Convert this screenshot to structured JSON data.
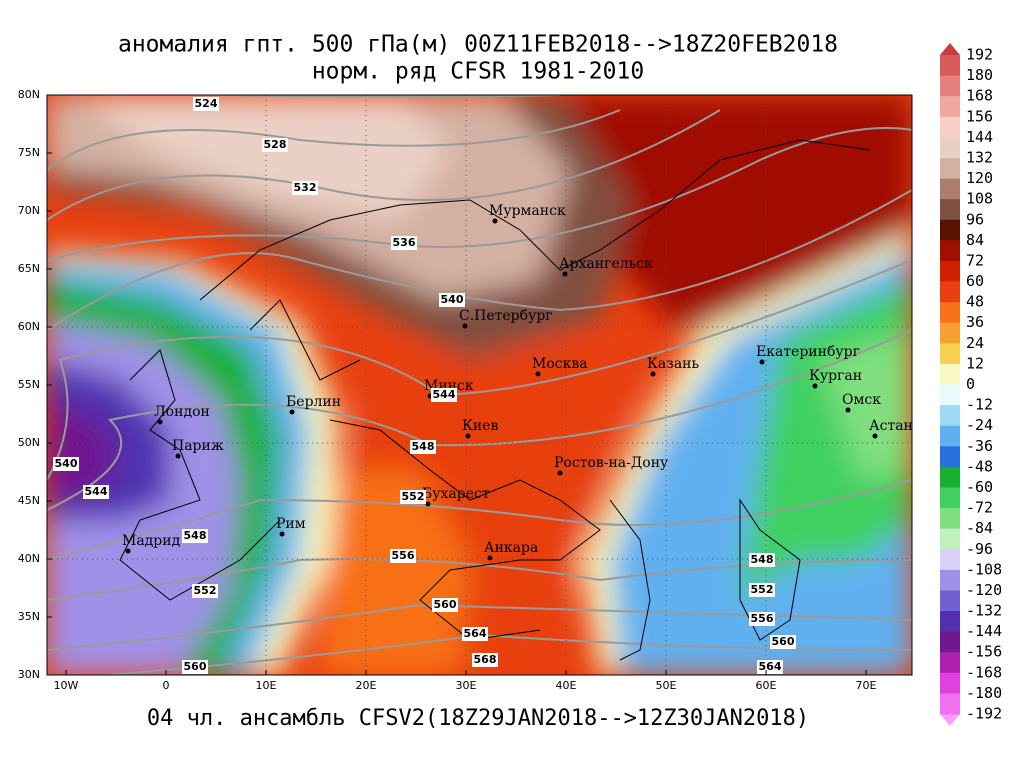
{
  "header": {
    "title_lines": [
      "аномалия гпт. 500 гПа(м) 00Z11FEB2018-->18Z20FEB2018",
      "норм. ряд CFSR 1981-2010"
    ]
  },
  "map": {
    "lat_labels": [
      "80N",
      "75N",
      "70N",
      "65N",
      "60N",
      "55N",
      "50N",
      "45N",
      "40N",
      "35N",
      "30N"
    ],
    "lon_labels": [
      "10W",
      "0",
      "10E",
      "20E",
      "30E",
      "40E",
      "50E",
      "60E",
      "70E"
    ],
    "cities": [
      "Мурманск",
      "Архангельск",
      "С.Петербург",
      "Москва",
      "Казань",
      "Екатеринбург",
      "Курган",
      "Омск",
      "Астана",
      "Минск",
      "Киев",
      "Берлин",
      "Лондон",
      "Париж",
      "Ростов-на-Дону",
      "Бухарест",
      "Рим",
      "Мадрид",
      "Анкара"
    ],
    "contour_labels": [
      "524",
      "528",
      "532",
      "536",
      "540",
      "544",
      "548",
      "552",
      "556",
      "560",
      "564",
      "568",
      "540",
      "544",
      "548",
      "552",
      "560",
      "548",
      "552",
      "556",
      "560",
      "564"
    ]
  },
  "colorbar": {
    "labels": [
      "192",
      "180",
      "168",
      "156",
      "144",
      "132",
      "120",
      "108",
      "96",
      "84",
      "72",
      "60",
      "48",
      "36",
      "24",
      "12",
      "0",
      "-12",
      "-24",
      "-36",
      "-48",
      "-60",
      "-72",
      "-84",
      "-96",
      "-108",
      "-120",
      "-132",
      "-144",
      "-156",
      "-168",
      "-180",
      "-192"
    ],
    "colors": [
      "#d85c5c",
      "#e88080",
      "#f0a8a0",
      "#f8d0c8",
      "#ead0c4",
      "#d4b0a2",
      "#ac7c6c",
      "#805040",
      "#5a1200",
      "#a01000",
      "#d02000",
      "#e84010",
      "#f87018",
      "#f8a030",
      "#f8d050",
      "#f8f8c0",
      "#e8fafa",
      "#a0d8f8",
      "#60b0f0",
      "#2870e0",
      "#18b030",
      "#40d060",
      "#80e080",
      "#c0f0c0",
      "#d8d0f8",
      "#a090e8",
      "#7060d0",
      "#5030b0",
      "#701890",
      "#b020b0",
      "#e040e0",
      "#f070f0"
    ],
    "over_color": "#c83c3c",
    "under_color": "#f8a0f8"
  },
  "footer": {
    "text": "04 чл. ансамбль CFSV2(18Z29JAN2018-->12Z30JAN2018)"
  }
}
